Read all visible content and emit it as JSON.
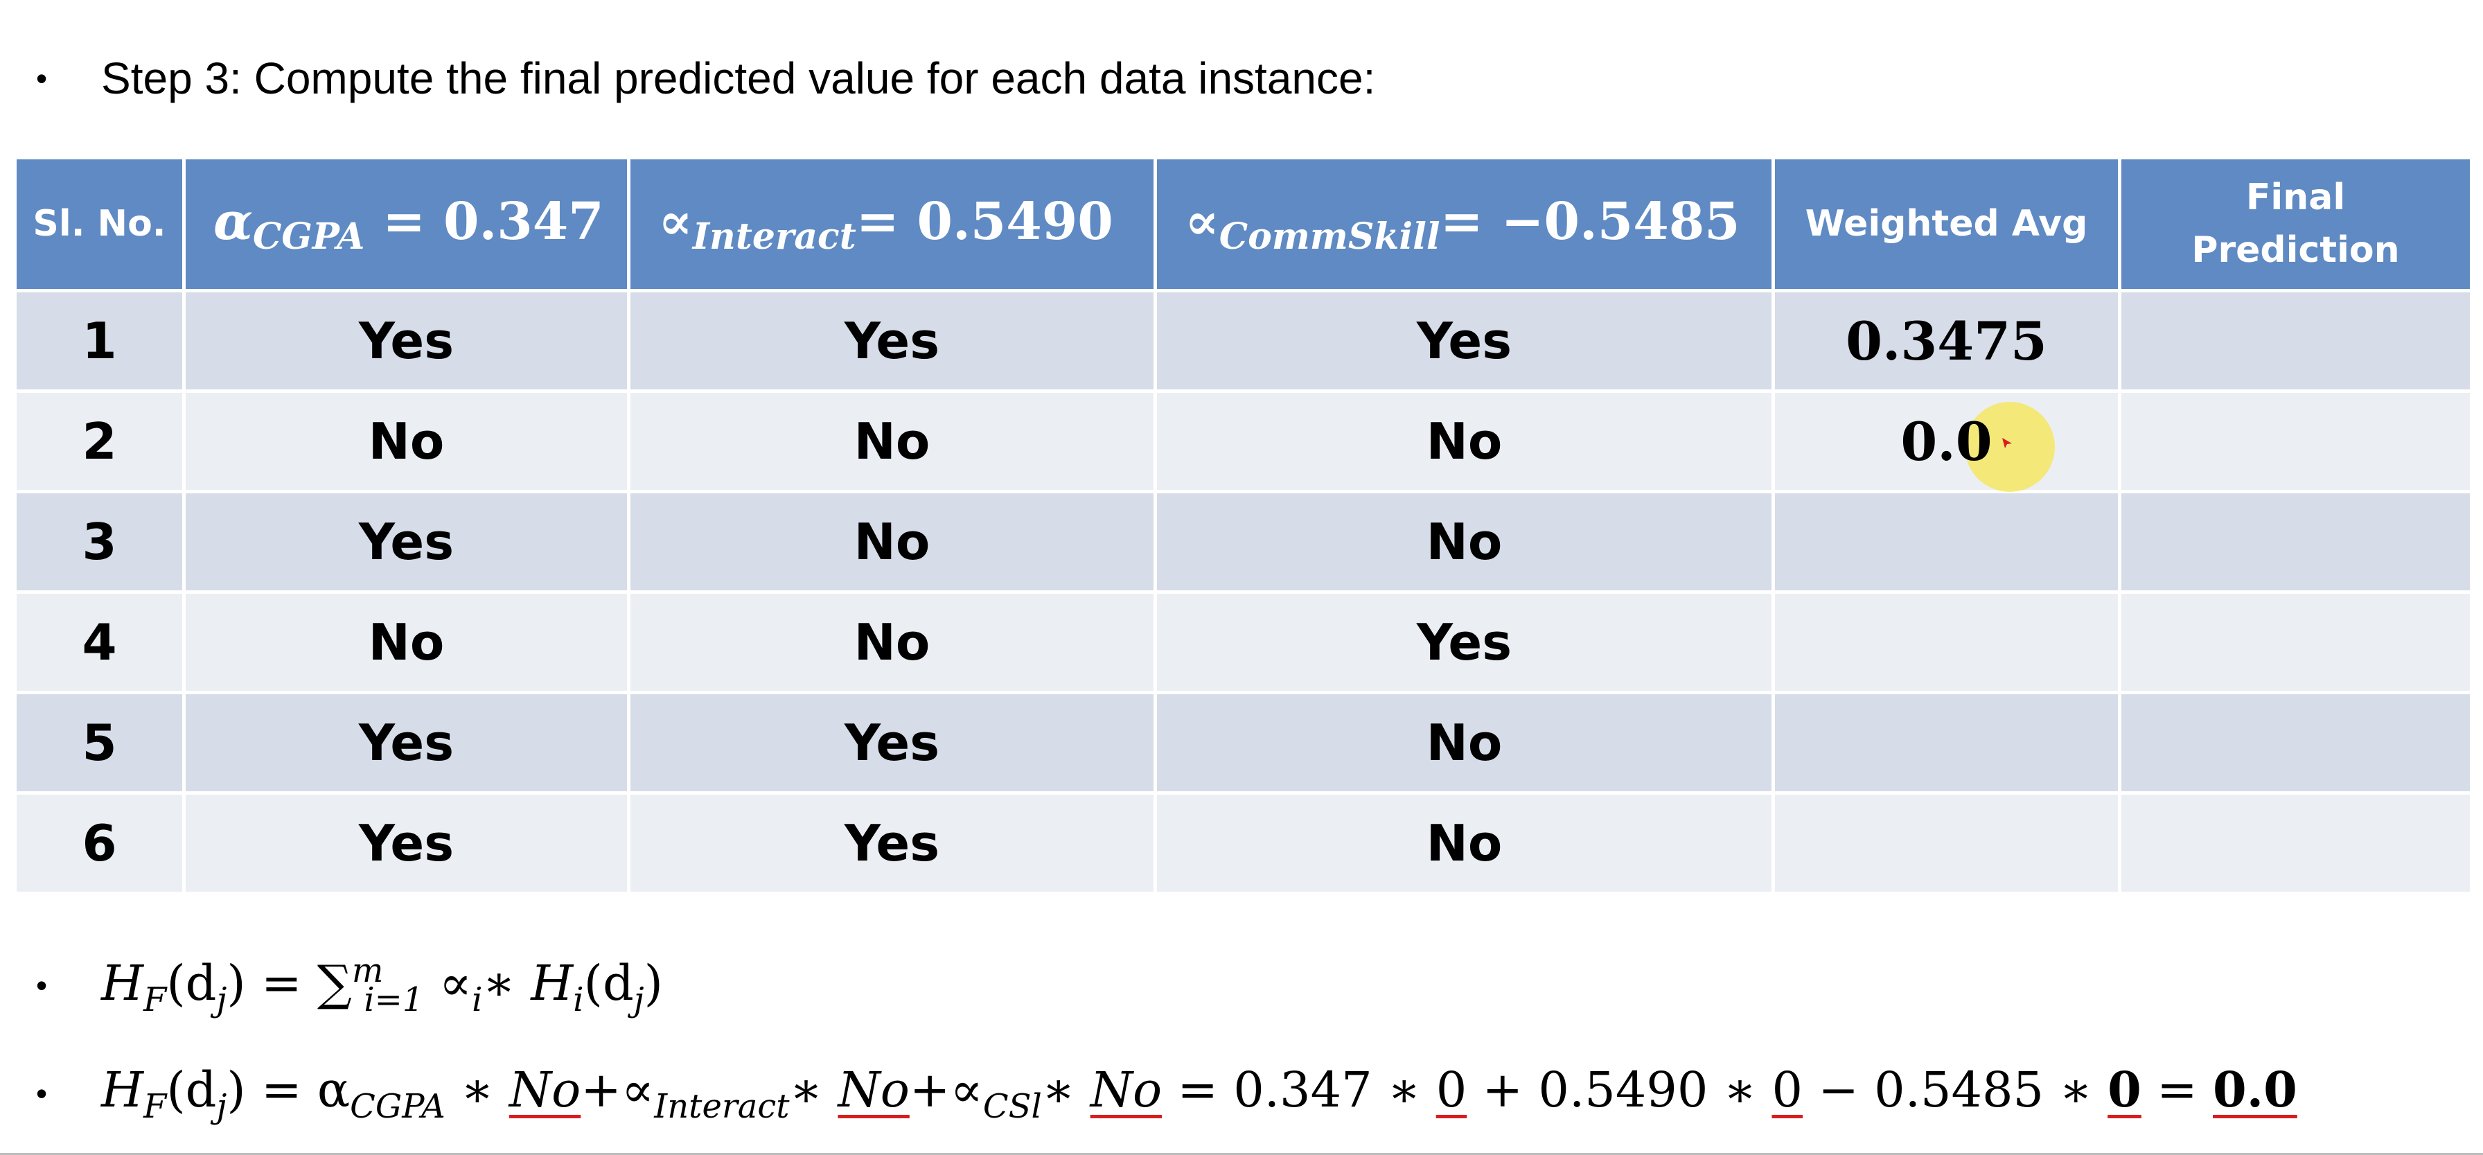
{
  "step": {
    "bullet": "•",
    "text": "Step 3: Compute the final predicted value for each data instance:"
  },
  "table": {
    "headers": {
      "sl_no": "Sl. No.",
      "cgpa": {
        "symbol": "α",
        "subscript": "CGPA",
        "rest": " = 0.347"
      },
      "interact": {
        "symbol": "∝",
        "subscript": "Interact",
        "rest": "= 0.5490"
      },
      "commskill": {
        "symbol": "∝",
        "subscript": "CommSkill",
        "rest": "= −0.5485"
      },
      "weighted_avg": "Weighted Avg",
      "final_prediction": "Final Prediction"
    },
    "rows": [
      {
        "sl": "1",
        "cgpa": "Yes",
        "interact": "Yes",
        "commskill": "Yes",
        "weighted": "0.3475",
        "final": ""
      },
      {
        "sl": "2",
        "cgpa": "No",
        "interact": "No",
        "commskill": "No",
        "weighted": "0.0",
        "final": ""
      },
      {
        "sl": "3",
        "cgpa": "Yes",
        "interact": "No",
        "commskill": "No",
        "weighted": "",
        "final": ""
      },
      {
        "sl": "4",
        "cgpa": "No",
        "interact": "No",
        "commskill": "Yes",
        "weighted": "",
        "final": ""
      },
      {
        "sl": "5",
        "cgpa": "Yes",
        "interact": "Yes",
        "commskill": "No",
        "weighted": "",
        "final": ""
      },
      {
        "sl": "6",
        "cgpa": "Yes",
        "interact": "Yes",
        "commskill": "No",
        "weighted": "",
        "final": ""
      }
    ]
  },
  "formula1": {
    "lhs_h": "H",
    "lhs_sub": "F",
    "lhs_arg": "(d",
    "lhs_arg_sub": "j",
    "lhs_close": ")",
    "eq": " = ∑",
    "sum_sub": "i=1",
    "sum_sup": "m",
    "alpha": " ∝",
    "alpha_sub": "i",
    "star": "∗ H",
    "h_sub": "i",
    "arg": "(d",
    "arg_sub": "j",
    "close": ")"
  },
  "formula2": {
    "lhs_h": "H",
    "lhs_sub": "F",
    "lhs_arg": "(d",
    "lhs_arg_sub": "j",
    "lhs_close": ")",
    "eq": " = α",
    "a1_sub": "CGPA",
    "t1": " ∗ ",
    "no1": "No",
    "a2": "+∝",
    "a2_sub": "Interact",
    "t2": "∗ ",
    "no2": "No",
    "a3": "+∝",
    "a3_sub": "CSl",
    "t3": "∗ ",
    "no3": "No",
    "calc1": " = 0.347 ∗ ",
    "z1": "0",
    "calc2": " + 0.5490 ∗ ",
    "z2": "0",
    "calc3": " − 0.5485 ∗ ",
    "z3": "0",
    "calc4": " = ",
    "result": "0.0"
  },
  "colors": {
    "header_bg": "#5f8ac3",
    "row_dark": "#d6dce8",
    "row_light": "#ebeff3",
    "underline": "#d81e1e",
    "cursor_glow": "#f7e650"
  }
}
